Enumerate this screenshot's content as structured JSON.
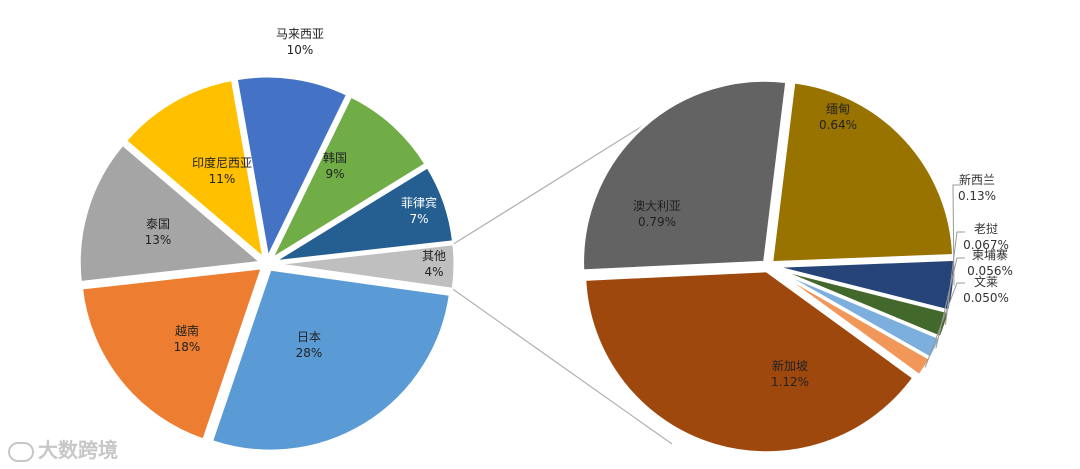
{
  "chart_data": [
    {
      "type": "pie",
      "title": "",
      "slices": [
        {
          "label": "马来西亚",
          "value": 10,
          "value_label": "10%",
          "color": "#4472c4"
        },
        {
          "label": "韩国",
          "value": 9,
          "value_label": "9%",
          "color": "#70ad47"
        },
        {
          "label": "菲律宾",
          "value": 7,
          "value_label": "7%",
          "color": "#255e91"
        },
        {
          "label": "其他",
          "value": 4,
          "value_label": "4%",
          "color": "#bfbfbf"
        },
        {
          "label": "日本",
          "value": 28,
          "value_label": "28%",
          "color": "#5b9bd5"
        },
        {
          "label": "越南",
          "value": 18,
          "value_label": "18%",
          "color": "#ed7d31"
        },
        {
          "label": "泰国",
          "value": 13,
          "value_label": "13%",
          "color": "#a5a5a5"
        },
        {
          "label": "印度尼西亚",
          "value": 11,
          "value_label": "11%",
          "color": "#ffc000"
        }
      ]
    },
    {
      "type": "pie",
      "title": "",
      "slices": [
        {
          "label": "缅甸",
          "value": 0.64,
          "value_label": "0.64%",
          "color": "#997300"
        },
        {
          "label": "新西兰",
          "value": 0.13,
          "value_label": "0.13%",
          "color": "#264478"
        },
        {
          "label": "老挝",
          "value": 0.067,
          "value_label": "0.067%",
          "color": "#43682b"
        },
        {
          "label": "柬埔寨",
          "value": 0.056,
          "value_label": "0.056%",
          "color": "#7cafdd"
        },
        {
          "label": "文莱",
          "value": 0.05,
          "value_label": "0.050%",
          "color": "#f1975a"
        },
        {
          "label": "新加坡",
          "value": 1.12,
          "value_label": "1.12%",
          "color": "#9e480e"
        },
        {
          "label": "澳大利亚",
          "value": 0.79,
          "value_label": "0.79%",
          "color": "#636363"
        }
      ]
    }
  ],
  "watermark": "大数跨境"
}
